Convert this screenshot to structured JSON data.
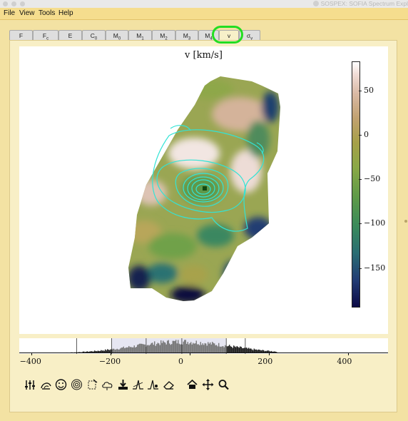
{
  "window": {
    "title": "SOSPEX: SOFIA Spectrum Expl"
  },
  "menu": [
    "File",
    "View",
    "Tools",
    "Help"
  ],
  "tabs": [
    {
      "main": "F",
      "sub": ""
    },
    {
      "main": "F",
      "sub": "c"
    },
    {
      "main": "E",
      "sub": ""
    },
    {
      "main": "C",
      "sub": "0"
    },
    {
      "main": "M",
      "sub": "0"
    },
    {
      "main": "M",
      "sub": "1"
    },
    {
      "main": "M",
      "sub": "2"
    },
    {
      "main": "M",
      "sub": "3"
    },
    {
      "main": "M",
      "sub": "4"
    },
    {
      "main": "v",
      "sub": ""
    },
    {
      "main": "σ",
      "sub": "v"
    }
  ],
  "active_tab": "v",
  "plot": {
    "title": "v [km/s]"
  },
  "colorbar": {
    "vmin": -193,
    "vmax": 83,
    "ticks": [
      50,
      0,
      -50,
      -100,
      -150
    ],
    "labels": [
      "50",
      "0",
      "−50",
      "−100",
      "−150"
    ]
  },
  "histogram": {
    "xmin": -430,
    "xmax": 500,
    "ticks": [
      -400,
      -200,
      0,
      200,
      400
    ],
    "labels": [
      "−400",
      "−200",
      "0",
      "200",
      "400"
    ]
  },
  "toolbar_icons": [
    "sliders-icon",
    "cloud-sweep-icon",
    "smiley-icon",
    "contour-icon",
    "fit-region-icon",
    "cloud-icon",
    "download-icon",
    "line-fit-icon",
    "line-fit-marker-icon",
    "eraser-icon",
    "home-icon",
    "pan-icon",
    "zoom-icon"
  ],
  "colors": {
    "background": "#f3e2a3",
    "menubar": "#f5dd8e",
    "panel": "#f8efc6",
    "highlight": "#22dd22",
    "contour": "#33e3d5"
  }
}
